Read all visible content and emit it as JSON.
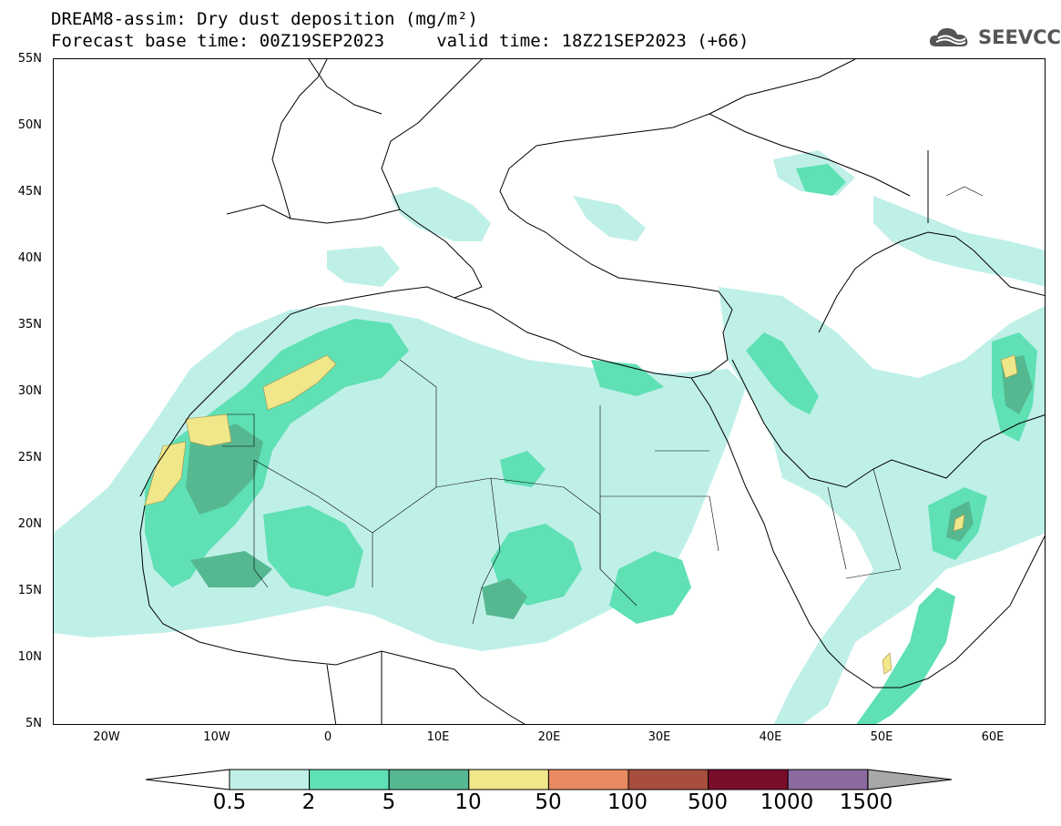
{
  "title_line1": "DREAM8-assim: Dry dust deposition (mg/m²)",
  "title_line2": "Forecast base time: 00Z19SEP2023     valid time: 18Z21SEP2023 (+66)",
  "logo_text": "SEEVCCC",
  "lat_labels": [
    "55N",
    "50N",
    "45N",
    "40N",
    "35N",
    "30N",
    "25N",
    "20N",
    "15N",
    "10N",
    "5N"
  ],
  "lon_labels": [
    "20W",
    "10W",
    "0",
    "10E",
    "20E",
    "30E",
    "40E",
    "50E",
    "60E"
  ],
  "colorbar": {
    "labels": [
      "0.5",
      "2",
      "5",
      "10",
      "50",
      "100",
      "500",
      "1000",
      "1500"
    ],
    "colors": [
      "#bff0e8",
      "#5fe0b5",
      "#55b890",
      "#f0e68a",
      "#e98a62",
      "#a84e3c",
      "#7a0e2a",
      "#8b6aa0"
    ],
    "under_color": "#ffffff",
    "over_color": "#a8a8a8"
  }
}
